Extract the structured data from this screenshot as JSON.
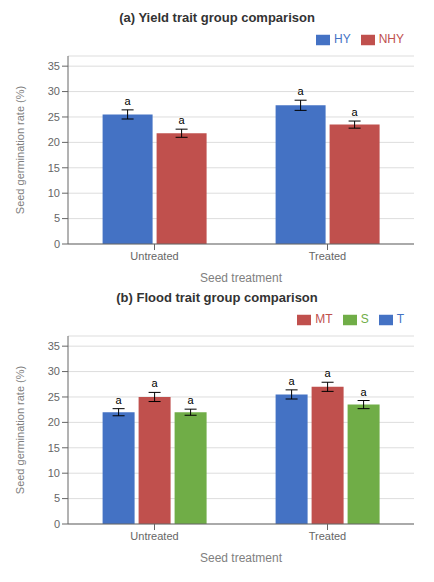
{
  "chart_data": [
    {
      "type": "bar",
      "title": "(a) Yield trait group comparison",
      "categories": [
        "Untreated",
        "Treated"
      ],
      "series": [
        {
          "name": "HY",
          "color": "#4472C4",
          "values": [
            25.5,
            27.3
          ],
          "errors": [
            0.9,
            1.0
          ],
          "annotations": [
            "a",
            "a"
          ]
        },
        {
          "name": "NHY",
          "color": "#C0504D",
          "values": [
            21.8,
            23.5
          ],
          "errors": [
            0.8,
            0.7
          ],
          "annotations": [
            "a",
            "a"
          ]
        }
      ],
      "ylabel": "Seed germination rate (%)",
      "xlabel": "Seed treatment",
      "ylim": [
        0,
        37
      ],
      "yticks": [
        0,
        5,
        10,
        15,
        20,
        25,
        30,
        35
      ],
      "grid": true,
      "legend": "upper right"
    },
    {
      "type": "bar",
      "title": "(b) Flood trait group comparison",
      "categories": [
        "Untreated",
        "Treated"
      ],
      "series": [
        {
          "name": "T",
          "color": "#4472C4",
          "values": [
            22.0,
            25.5
          ],
          "errors": [
            0.7,
            0.9
          ],
          "annotations": [
            "a",
            "a"
          ]
        },
        {
          "name": "MT",
          "color": "#C0504D",
          "values": [
            25.0,
            27.0
          ],
          "errors": [
            0.9,
            0.9
          ],
          "annotations": [
            "a",
            "a"
          ]
        },
        {
          "name": "S",
          "color": "#70AD47",
          "values": [
            22.0,
            23.5
          ],
          "errors": [
            0.6,
            0.8
          ],
          "annotations": [
            "a",
            "a"
          ]
        }
      ],
      "ylabel": "Seed germination rate (%)",
      "xlabel": "Seed treatment",
      "ylim": [
        0,
        37
      ],
      "yticks": [
        0,
        5,
        10,
        15,
        20,
        25,
        30,
        35
      ],
      "grid": true,
      "legend": "upper right"
    }
  ]
}
